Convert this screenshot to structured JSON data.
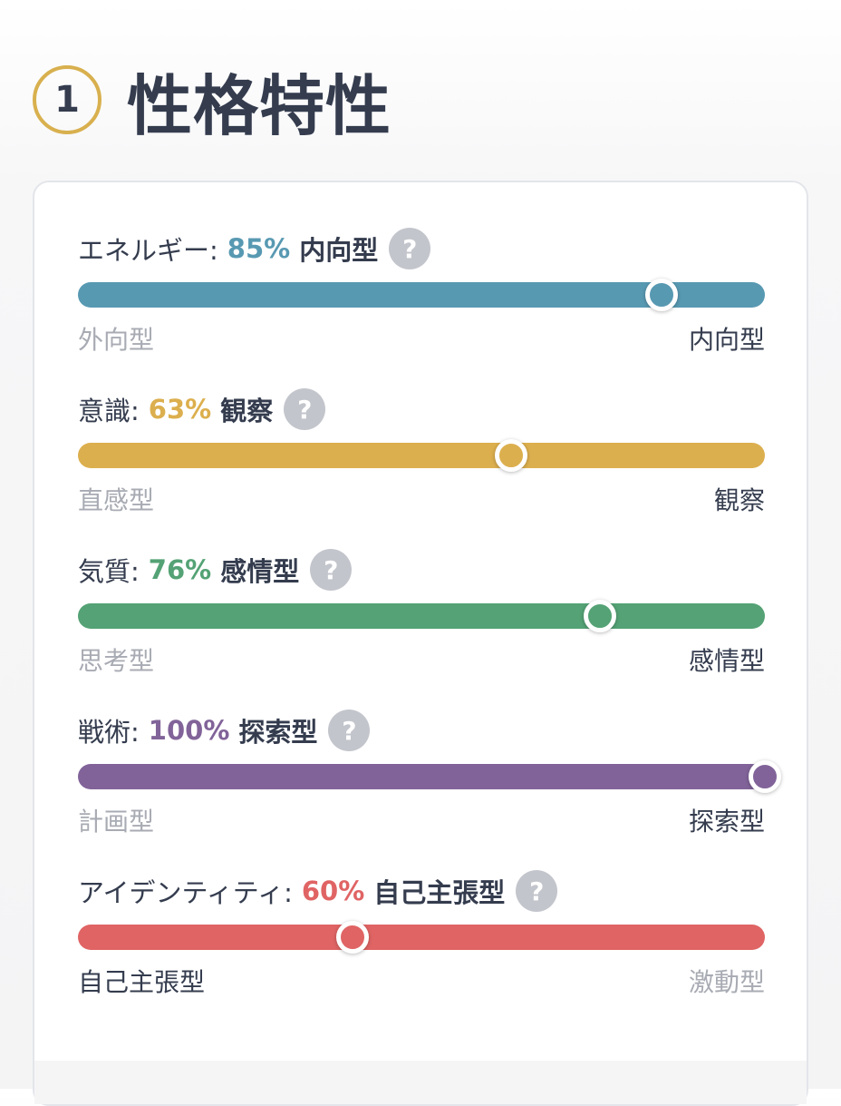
{
  "header": {
    "step_number": "1",
    "title": "性格特性"
  },
  "traits": [
    {
      "name": "エネルギー:",
      "percent": "85%",
      "type": "内向型",
      "help": "?",
      "left_label": "外向型",
      "right_label": "内向型",
      "position": 0.85,
      "emphasis": "right",
      "color": "#5899b2"
    },
    {
      "name": "意識:",
      "percent": "63%",
      "type": "観察",
      "help": "?",
      "left_label": "直感型",
      "right_label": "観察",
      "position": 0.63,
      "emphasis": "right",
      "color": "#dcaf4e"
    },
    {
      "name": "気質:",
      "percent": "76%",
      "type": "感情型",
      "help": "?",
      "left_label": "思考型",
      "right_label": "感情型",
      "position": 0.76,
      "emphasis": "right",
      "color": "#54a275"
    },
    {
      "name": "戦術:",
      "percent": "100%",
      "type": "探索型",
      "help": "?",
      "left_label": "計画型",
      "right_label": "探索型",
      "position": 1.0,
      "emphasis": "right",
      "color": "#816399"
    },
    {
      "name": "アイデンティティ:",
      "percent": "60%",
      "type": "自己主張型",
      "help": "?",
      "left_label": "自己主張型",
      "right_label": "激動型",
      "position": 0.4,
      "emphasis": "left",
      "color": "#e06464"
    }
  ]
}
